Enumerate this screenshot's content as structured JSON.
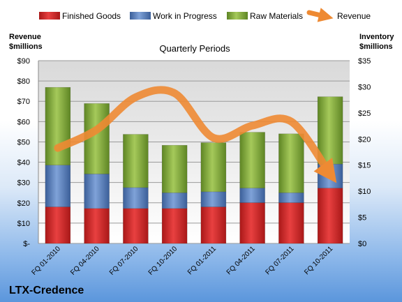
{
  "chart_data": {
    "type": "bar",
    "title": "Quarterly Periods",
    "company": "LTX-Credence",
    "left_axis_label": [
      "Revenue",
      "$millions"
    ],
    "right_axis_label": [
      "Inventory",
      "$millions"
    ],
    "categories": [
      "FQ 01-2010",
      "FQ 04-2010",
      "FQ 07-2010",
      "FQ 10-2010",
      "FQ 01-2011",
      "FQ 04-2011",
      "FQ 07-2011",
      "FQ 10-2011"
    ],
    "left_ticks": [
      "$-",
      "$10",
      "$20",
      "$30",
      "$40",
      "$50",
      "$60",
      "$70",
      "$80",
      "$90"
    ],
    "right_ticks": [
      "$0",
      "$5",
      "$10",
      "$15",
      "$20",
      "$25",
      "$30",
      "$35"
    ],
    "left_ylim": [
      0,
      90
    ],
    "right_ylim": [
      0,
      35
    ],
    "legend_position": "top",
    "grid": true,
    "series": [
      {
        "name": "Finished Goods",
        "type": "bar",
        "axis": "right",
        "color": "#d42a2a",
        "values": [
          7.0,
          6.7,
          6.7,
          6.7,
          7.0,
          7.8,
          7.8,
          10.6
        ]
      },
      {
        "name": "Work in Progress",
        "type": "bar",
        "axis": "right",
        "color": "#4f78b8",
        "values": [
          8.0,
          6.6,
          4.0,
          3.0,
          2.9,
          2.8,
          1.9,
          4.6
        ]
      },
      {
        "name": "Raw Materials",
        "type": "bar",
        "axis": "right",
        "color": "#86ad3c",
        "values": [
          14.9,
          13.5,
          10.2,
          9.1,
          9.4,
          10.7,
          11.3,
          12.9
        ]
      },
      {
        "name": "Revenue",
        "type": "line",
        "axis": "left",
        "color": "#ee8a33",
        "values": [
          47,
          56,
          72,
          74,
          52,
          58,
          60,
          34
        ]
      }
    ]
  }
}
